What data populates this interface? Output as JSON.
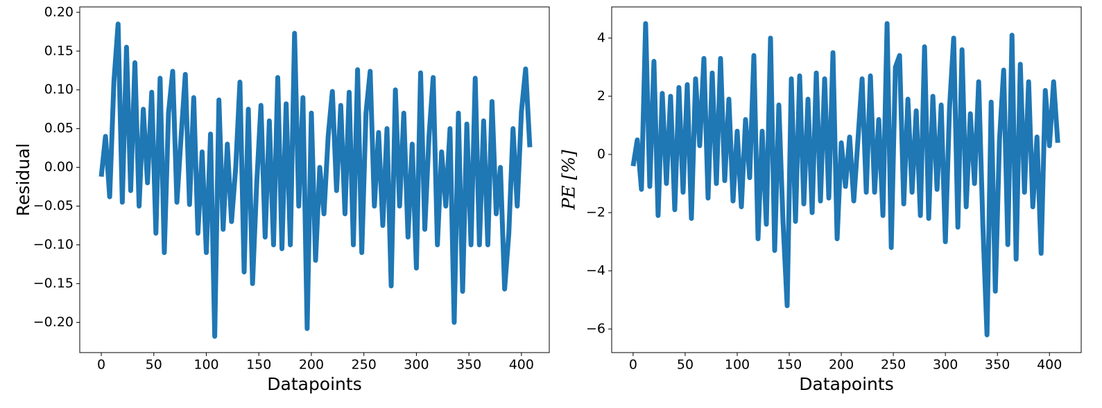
{
  "chart_data": [
    {
      "type": "line",
      "ylabel": "Residual",
      "xlabel": "Datapoints",
      "x": [
        0,
        4,
        8,
        12,
        16,
        20,
        24,
        28,
        32,
        36,
        40,
        44,
        48,
        52,
        56,
        60,
        64,
        68,
        72,
        76,
        80,
        84,
        88,
        92,
        96,
        100,
        104,
        108,
        112,
        116,
        120,
        124,
        128,
        132,
        136,
        140,
        144,
        148,
        152,
        156,
        160,
        164,
        168,
        172,
        176,
        180,
        184,
        188,
        192,
        196,
        200,
        204,
        208,
        212,
        216,
        220,
        224,
        228,
        232,
        236,
        240,
        244,
        248,
        252,
        256,
        260,
        264,
        268,
        272,
        276,
        280,
        284,
        288,
        292,
        296,
        300,
        304,
        308,
        312,
        316,
        320,
        324,
        328,
        332,
        336,
        340,
        344,
        348,
        352,
        356,
        360,
        364,
        368,
        372,
        376,
        380,
        384,
        388,
        392,
        396,
        400,
        404,
        408
      ],
      "series": [
        {
          "color": "#1f77b4",
          "values": [
            -0.012,
            0.04,
            -0.038,
            0.11,
            0.185,
            -0.045,
            0.155,
            -0.03,
            0.135,
            -0.05,
            0.075,
            -0.02,
            0.097,
            -0.085,
            0.115,
            -0.11,
            0.07,
            0.124,
            -0.045,
            0.04,
            0.12,
            -0.048,
            0.09,
            -0.085,
            0.02,
            -0.11,
            0.043,
            -0.218,
            0.087,
            -0.08,
            0.03,
            -0.07,
            0.0,
            0.11,
            -0.135,
            0.075,
            -0.15,
            -0.02,
            0.08,
            -0.09,
            0.06,
            -0.1,
            0.116,
            -0.105,
            0.082,
            -0.1,
            0.173,
            -0.05,
            0.09,
            -0.208,
            0.07,
            -0.12,
            0.0,
            -0.06,
            0.04,
            0.098,
            -0.03,
            0.08,
            -0.06,
            0.097,
            -0.1,
            0.126,
            -0.11,
            0.07,
            0.124,
            -0.05,
            0.045,
            -0.075,
            0.05,
            -0.153,
            0.1,
            -0.05,
            0.07,
            -0.09,
            0.03,
            -0.13,
            0.122,
            -0.08,
            0.04,
            0.116,
            -0.1,
            0.02,
            -0.05,
            0.05,
            -0.2,
            0.07,
            -0.16,
            0.056,
            -0.1,
            0.115,
            -0.1,
            0.06,
            -0.1,
            0.085,
            -0.06,
            0.0,
            -0.157,
            -0.085,
            0.05,
            -0.05,
            0.072,
            0.127,
            0.026
          ]
        }
      ],
      "xlim": [
        -20.5,
        426.5
      ],
      "xticks": [
        0,
        50,
        100,
        150,
        200,
        250,
        300,
        350,
        400
      ],
      "ylim": [
        -0.239,
        0.207
      ],
      "yticks": [
        {
          "value": -0.2,
          "label": "−0.20"
        },
        {
          "value": -0.15,
          "label": "−0.15"
        },
        {
          "value": -0.1,
          "label": "−0.10"
        },
        {
          "value": -0.05,
          "label": "−0.05"
        },
        {
          "value": 0,
          "label": "0.00"
        },
        {
          "value": 0.05,
          "label": "0.05"
        },
        {
          "value": 0.1,
          "label": "0.10"
        },
        {
          "value": 0.15,
          "label": "0.15"
        },
        {
          "value": 0.2,
          "label": "0.20"
        }
      ]
    },
    {
      "type": "line",
      "ylabel": "PE [%]",
      "xlabel": "Datapoints",
      "x": [
        0,
        4,
        8,
        12,
        16,
        20,
        24,
        28,
        32,
        36,
        40,
        44,
        48,
        52,
        56,
        60,
        64,
        68,
        72,
        76,
        80,
        84,
        88,
        92,
        96,
        100,
        104,
        108,
        112,
        116,
        120,
        124,
        128,
        132,
        136,
        140,
        144,
        148,
        152,
        156,
        160,
        164,
        168,
        172,
        176,
        180,
        184,
        188,
        192,
        196,
        200,
        204,
        208,
        212,
        216,
        220,
        224,
        228,
        232,
        236,
        240,
        244,
        248,
        252,
        256,
        260,
        264,
        268,
        272,
        276,
        280,
        284,
        288,
        292,
        296,
        300,
        304,
        308,
        312,
        316,
        320,
        324,
        328,
        332,
        336,
        340,
        344,
        348,
        352,
        356,
        360,
        364,
        368,
        372,
        376,
        380,
        384,
        388,
        392,
        396,
        400,
        404,
        408
      ],
      "series": [
        {
          "color": "#1f77b4",
          "values": [
            -0.4,
            0.5,
            -1.2,
            4.5,
            -1.1,
            3.2,
            -2.1,
            2.1,
            -1.0,
            2.0,
            -1.9,
            2.3,
            -1.3,
            2.4,
            -2.2,
            2.6,
            0.3,
            3.3,
            -1.5,
            2.8,
            -1.0,
            3.3,
            -0.9,
            1.9,
            -1.6,
            0.8,
            -1.8,
            1.2,
            -0.8,
            3.4,
            -2.9,
            0.8,
            -2.4,
            4.0,
            -3.3,
            1.7,
            -2.3,
            -5.2,
            2.6,
            -2.3,
            2.7,
            -1.7,
            1.9,
            -2.0,
            2.8,
            -1.6,
            2.6,
            -1.5,
            3.5,
            -2.9,
            0.4,
            -1.1,
            0.6,
            -1.6,
            0.5,
            2.6,
            -1.3,
            2.7,
            -1.3,
            1.2,
            -2.1,
            4.5,
            -3.2,
            3.0,
            3.4,
            -1.7,
            1.9,
            -1.3,
            1.5,
            -2.1,
            3.7,
            -2.2,
            2.0,
            -1.2,
            1.7,
            -3.0,
            1.6,
            4.0,
            -2.5,
            3.6,
            -1.8,
            1.4,
            -1.0,
            2.5,
            -2.4,
            -6.2,
            1.8,
            -4.7,
            0.5,
            2.9,
            -3.1,
            4.1,
            -3.6,
            3.1,
            -1.3,
            2.5,
            -1.8,
            0.6,
            -3.4,
            2.2,
            0.3,
            2.5,
            0.4
          ]
        }
      ],
      "xlim": [
        -20.6,
        430.5
      ],
      "xticks": [
        0,
        50,
        100,
        150,
        200,
        250,
        300,
        350,
        400
      ],
      "ylim": [
        -6.81,
        5.07
      ],
      "yticks": [
        {
          "value": -6,
          "label": "−6"
        },
        {
          "value": -4,
          "label": "−4"
        },
        {
          "value": -2,
          "label": "−2"
        },
        0,
        2,
        4
      ]
    }
  ]
}
